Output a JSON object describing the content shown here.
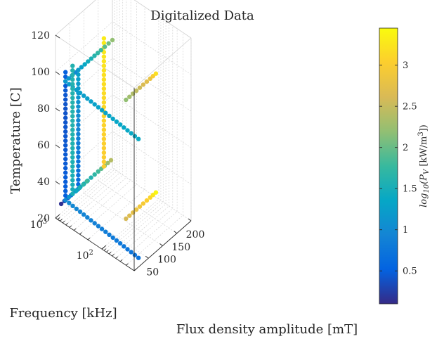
{
  "chart_data": {
    "type": "scatter3d",
    "title": "Digitalized Data",
    "xlabel": "Flux density amplitude [mT]",
    "ylabel": "Frequency [kHz]",
    "zlabel": "Temperature [C]",
    "x_ticks": [
      "50",
      "100",
      "150",
      "200"
    ],
    "y_ticks": [
      "10^2",
      "10^3"
    ],
    "z_ticks": [
      "20",
      "40",
      "60",
      "80",
      "100",
      "120"
    ],
    "xlim": [
      0,
      200
    ],
    "ylim": [
      20,
      1000
    ],
    "y_scale": "log",
    "zlim": [
      20,
      120
    ],
    "grid": true,
    "colorbar": {
      "label": "log10(PV [kW/m3])",
      "ticks": [
        "0.5",
        "1",
        "1.5",
        "2",
        "2.5",
        "3"
      ],
      "range": [
        0.1,
        3.45
      ],
      "colormap": "parula"
    },
    "series": [
      {
        "points": [
          [
            20,
            1000,
            25,
            0.15
          ],
          [
            55,
            1000,
            25,
            0.6
          ],
          [
            85,
            1000,
            25,
            1.0
          ]
        ]
      },
      {
        "points": [
          [
            35,
            1000,
            25,
            0.5
          ],
          [
            35,
            1000,
            75,
            0.4
          ],
          [
            35,
            1000,
            95,
            0.5
          ]
        ]
      },
      {
        "points": [
          [
            80,
            1000,
            25,
            0.6
          ],
          [
            80,
            1000,
            55,
            0.9
          ],
          [
            80,
            1000,
            90,
            1.3
          ]
        ]
      },
      {
        "points": [
          [
            75,
            1000,
            25,
            1.2
          ],
          [
            150,
            1000,
            25,
            1.8
          ],
          [
            195,
            1000,
            25,
            2.4
          ]
        ]
      },
      {
        "points": [
          [
            170,
            1000,
            25,
            3.0
          ],
          [
            170,
            1000,
            55,
            3.1
          ],
          [
            170,
            1000,
            95,
            3.3
          ]
        ]
      },
      {
        "points": [
          [
            80,
            1000,
            90,
            1.2
          ],
          [
            160,
            1000,
            90,
            1.8
          ],
          [
            200,
            1000,
            90,
            2.2
          ]
        ]
      },
      {
        "points": [
          [
            15,
            20,
            25,
            0.7
          ],
          [
            35,
            1000,
            25,
            1.0
          ],
          [
            110,
            1000,
            25,
            1.8
          ]
        ]
      },
      {
        "points": [
          [
            85,
            100,
            25,
            2.6
          ],
          [
            170,
            100,
            25,
            3.1
          ],
          [
            190,
            100,
            25,
            3.4
          ]
        ]
      },
      {
        "points": [
          [
            15,
            20,
            90,
            1.4
          ],
          [
            35,
            1000,
            90,
            1.2
          ],
          [
            70,
            1000,
            90,
            1.0
          ]
        ]
      },
      {
        "points": [
          [
            85,
            100,
            90,
            2.2
          ],
          [
            170,
            100,
            90,
            2.8
          ],
          [
            190,
            100,
            90,
            3.2
          ]
        ]
      },
      {
        "points": [
          [
            60,
            1000,
            25,
            1.5
          ],
          [
            60,
            1000,
            60,
            1.6
          ],
          [
            60,
            1000,
            95,
            1.6
          ]
        ]
      }
    ]
  }
}
